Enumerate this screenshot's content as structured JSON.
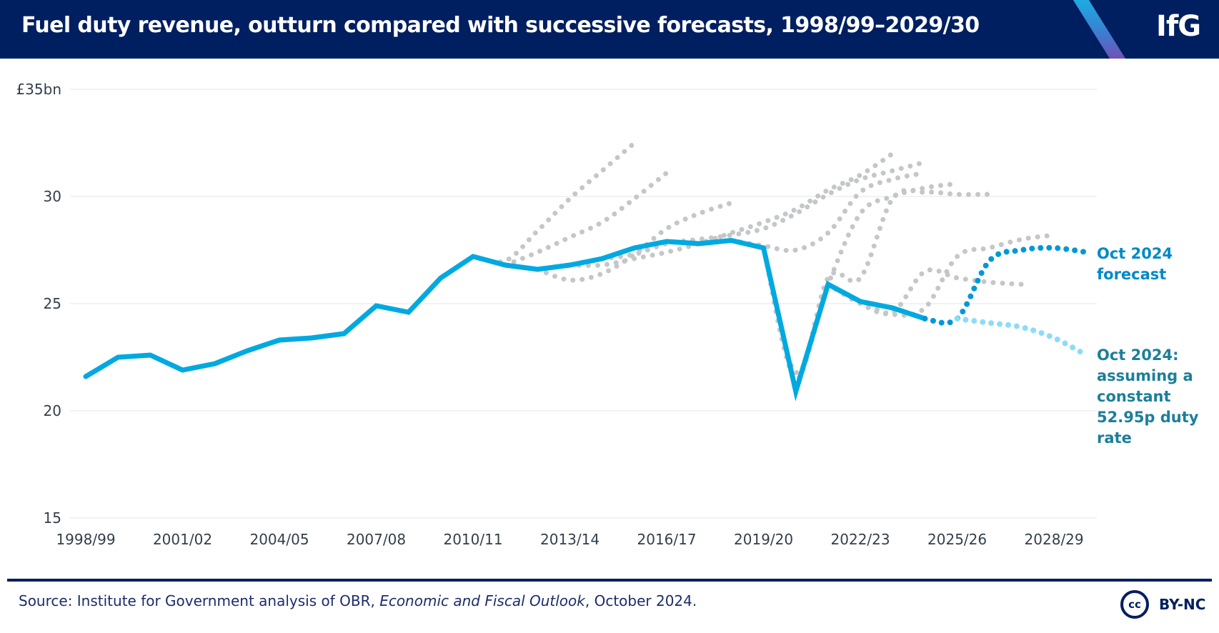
{
  "header": {
    "title": "Fuel duty revenue, outturn compared with successive forecasts, 1998/99–2029/30",
    "logo_text": "IfG"
  },
  "footer": {
    "source_prefix": "Source: Institute for Government analysis of OBR, ",
    "source_italic": "Economic and Fiscal Outlook",
    "source_suffix": ", October 2024.",
    "license_icon": "cc-icon",
    "license_icon_text": "cc",
    "license_label": "BY-NC"
  },
  "colors": {
    "header_bg": "#001f60",
    "outturn": "#00a9e0",
    "forecast_oct2024": "#0098d8",
    "constant_rate": "#8ddcf7",
    "past_forecasts": "#c4c7ca",
    "annotation_forecast": "#0089c6",
    "annotation_constant": "#1c7f99"
  },
  "chart_data": {
    "type": "line",
    "title": "Fuel duty revenue, outturn compared with successive forecasts, 1998/99–2029/30",
    "xlabel": "",
    "ylabel": "£bn",
    "ylim": [
      15,
      35
    ],
    "yticks": [
      {
        "value": 35,
        "label": "£35bn"
      },
      {
        "value": 30,
        "label": "30"
      },
      {
        "value": 25,
        "label": "25"
      },
      {
        "value": 20,
        "label": "20"
      },
      {
        "value": 15,
        "label": "15"
      }
    ],
    "grid": true,
    "x": [
      "1998/99",
      "1999/00",
      "2000/01",
      "2001/02",
      "2002/03",
      "2003/04",
      "2004/05",
      "2005/06",
      "2006/07",
      "2007/08",
      "2008/09",
      "2009/10",
      "2010/11",
      "2011/12",
      "2012/13",
      "2013/14",
      "2014/15",
      "2015/16",
      "2016/17",
      "2017/18",
      "2018/19",
      "2019/20",
      "2020/21",
      "2021/22",
      "2022/23",
      "2023/24",
      "2024/25",
      "2025/26",
      "2026/27",
      "2027/28",
      "2028/29",
      "2029/30"
    ],
    "xtick_labels": [
      "1998/99",
      "2001/02",
      "2004/05",
      "2007/08",
      "2010/11",
      "2013/14",
      "2016/17",
      "2019/20",
      "2022/23",
      "2025/26",
      "2028/29"
    ],
    "series": [
      {
        "name": "Outturn",
        "style": "solid",
        "start": "1998/99",
        "values": [
          21.6,
          22.5,
          22.6,
          21.9,
          22.2,
          22.8,
          23.3,
          23.4,
          23.6,
          24.9,
          24.6,
          26.2,
          27.2,
          26.8,
          26.6,
          26.8,
          27.1,
          27.6,
          27.9,
          27.8,
          27.95,
          27.6,
          20.9,
          25.9,
          25.1,
          24.8,
          24.3
        ]
      },
      {
        "name": "Oct 2024 forecast",
        "style": "dotted",
        "start": "2024/25",
        "values": [
          24.3,
          24.3,
          27.0,
          27.5,
          27.6,
          27.4
        ]
      },
      {
        "name": "Oct 2024: assuming a constant 52.95p duty rate",
        "style": "dotted",
        "start": "2025/26",
        "values": [
          24.3,
          24.1,
          23.9,
          23.4,
          22.6
        ]
      },
      {
        "name": "Past forecast 1",
        "style": "dotted-grey",
        "start": "2010/11",
        "values": [
          27.2,
          27.0,
          28.4,
          29.9,
          31.2,
          32.5
        ]
      },
      {
        "name": "Past forecast 2",
        "style": "dotted-grey",
        "start": "2011/12",
        "values": [
          26.8,
          27.4,
          28.1,
          28.8,
          29.9,
          31.1
        ]
      },
      {
        "name": "Past forecast 3",
        "style": "dotted-grey",
        "start": "2012/13",
        "values": [
          26.6,
          26.1,
          26.4,
          27.3,
          28.5,
          29.2,
          29.7
        ]
      },
      {
        "name": "Past forecast 4",
        "style": "dotted-grey",
        "start": "2013/14",
        "values": [
          26.8,
          26.8,
          27.1,
          27.4,
          27.8,
          28.3,
          28.8,
          29.4,
          30.3,
          31.0,
          32.0
        ]
      },
      {
        "name": "Past forecast 5",
        "style": "dotted-grey",
        "start": "2014/15",
        "values": [
          27.1,
          27.3,
          27.8,
          28.0,
          28.2,
          28.5,
          29.2,
          30.1,
          30.8,
          31.2,
          31.6
        ]
      },
      {
        "name": "Past forecast 6",
        "style": "dotted-grey",
        "start": "2018/19",
        "values": [
          27.95,
          27.7,
          27.5,
          28.3,
          30.2,
          30.8,
          31.1
        ]
      },
      {
        "name": "Past forecast 7",
        "style": "dotted-grey",
        "start": "2019/20",
        "values": [
          27.6,
          21.5,
          26.2,
          26.2,
          29.9,
          30.2,
          30.1,
          30.1
        ]
      },
      {
        "name": "Past forecast 8",
        "style": "dotted-grey",
        "start": "2019/20",
        "values": [
          27.6,
          21.8,
          25.9,
          29.2,
          30.0,
          30.4,
          30.6
        ]
      },
      {
        "name": "Past forecast 9",
        "style": "dotted-grey",
        "start": "2021/22",
        "values": [
          25.9,
          25.0,
          24.6,
          26.5,
          26.2,
          26.0,
          25.9
        ]
      },
      {
        "name": "Past forecast 10",
        "style": "dotted-grey",
        "start": "2022/23",
        "values": [
          25.1,
          24.5,
          24.8,
          27.2,
          27.6,
          28.0,
          28.2
        ]
      }
    ],
    "annotations": [
      {
        "text": "Oct 2024 forecast",
        "series": "Oct 2024 forecast",
        "placement": "right"
      },
      {
        "text": "Oct 2024: assuming a constant 52.95p duty rate",
        "series": "Oct 2024: assuming a constant 52.95p duty rate",
        "placement": "right"
      }
    ],
    "legend": "none (direct labels at right)"
  }
}
